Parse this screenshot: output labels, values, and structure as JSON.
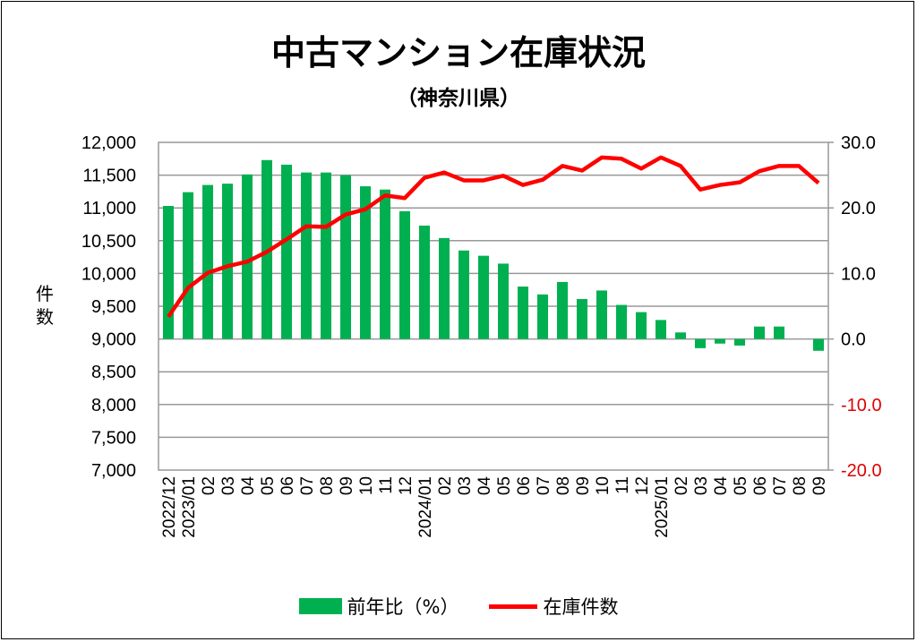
{
  "chart_data": {
    "type": "bar+line",
    "title": "中古マンション在庫状況",
    "subtitle": "（神奈川県）",
    "ylabel": "件数",
    "categories": [
      "2022/12",
      "2023/01",
      "02",
      "03",
      "04",
      "05",
      "06",
      "07",
      "08",
      "09",
      "10",
      "11",
      "12",
      "2024/01",
      "02",
      "03",
      "04",
      "05",
      "06",
      "07",
      "08",
      "09",
      "10",
      "11",
      "12",
      "2025/01",
      "02",
      "03",
      "04",
      "05",
      "06",
      "07",
      "08",
      "09"
    ],
    "left_axis": {
      "min": 7000,
      "max": 12000,
      "step": 500,
      "ticks": [
        "7,000",
        "7,500",
        "8,000",
        "8,500",
        "9,000",
        "9,500",
        "10,000",
        "10,500",
        "11,000",
        "11,500",
        "12,000"
      ]
    },
    "right_axis": {
      "min": -20,
      "max": 30,
      "step": 10,
      "ticks": [
        "-20.0",
        "-10.0",
        "0.0",
        "10.0",
        "20.0",
        "30.0"
      ],
      "negative_color": "#e00000"
    },
    "series": [
      {
        "name": "前年比（%）",
        "type": "bar",
        "axis": "right",
        "color": "#00b050",
        "values": [
          20.3,
          22.4,
          23.5,
          23.7,
          25.1,
          27.3,
          26.6,
          25.4,
          25.4,
          25.0,
          23.3,
          22.8,
          19.5,
          17.3,
          15.4,
          13.5,
          12.7,
          11.5,
          8.0,
          6.8,
          8.7,
          6.1,
          7.4,
          5.2,
          4.1,
          2.9,
          1.0,
          -1.4,
          -0.7,
          -1.0,
          1.9,
          1.9,
          null,
          -1.8
        ]
      },
      {
        "name": "在庫件数",
        "type": "line",
        "axis": "left",
        "color": "#ff0000",
        "values": [
          9340,
          9780,
          10010,
          10110,
          10180,
          10330,
          10520,
          10720,
          10710,
          10900,
          10980,
          11190,
          11150,
          11460,
          11540,
          11420,
          11420,
          11490,
          11350,
          11430,
          11640,
          11570,
          11770,
          11750,
          11600,
          11770,
          11640,
          11280,
          11350,
          11390,
          11560,
          11640,
          11640,
          11380
        ]
      }
    ],
    "grid": true,
    "legend": "bottom"
  }
}
